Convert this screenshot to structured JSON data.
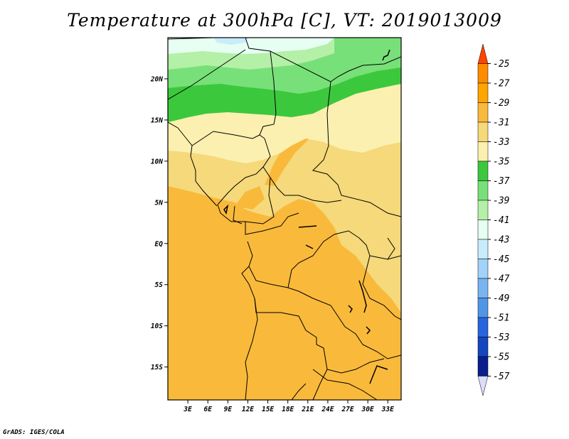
{
  "title": "Temperature at 300hPa [C], VT: 2019013009",
  "footer": "GrADS: IGES/COLA",
  "map": {
    "lon_labels": [
      "3E",
      "6E",
      "9E",
      "12E",
      "15E",
      "18E",
      "21E",
      "24E",
      "27E",
      "30E",
      "33E"
    ],
    "lat_labels": [
      "20N",
      "15N",
      "10N",
      "5N",
      "EQ",
      "5S",
      "10S",
      "15S"
    ],
    "lon_range": [
      0,
      35
    ],
    "lat_range": [
      -19,
      25
    ]
  },
  "colorbar": {
    "labels": [
      "-25",
      "-27",
      "-29",
      "-31",
      "-33",
      "-35",
      "-37",
      "-39",
      "-41",
      "-43",
      "-45",
      "-47",
      "-49",
      "-51",
      "-53",
      "-55",
      "-57"
    ],
    "colors": [
      "#ff4500",
      "#ff8c00",
      "#ffa500",
      "#f9b93b",
      "#f5d97a",
      "#fbf0b0",
      "#3cc83c",
      "#78e078",
      "#b4f0a8",
      "#e6fff2",
      "#c8ecfc",
      "#a0d2fa",
      "#78b4f0",
      "#5096e6",
      "#2864dc",
      "#1446be",
      "#0a1e8c",
      "#dcdcfc"
    ]
  },
  "colors": {
    "orange": "#f9b93b",
    "light_orange": "#f5d97a",
    "pale_yellow": "#fbf0b0",
    "dark_green": "#3cc83c",
    "mid_green": "#78e078",
    "light_green": "#b4f0a8",
    "pale_cyan": "#e6fff2",
    "light_blue": "#c8ecfc"
  }
}
